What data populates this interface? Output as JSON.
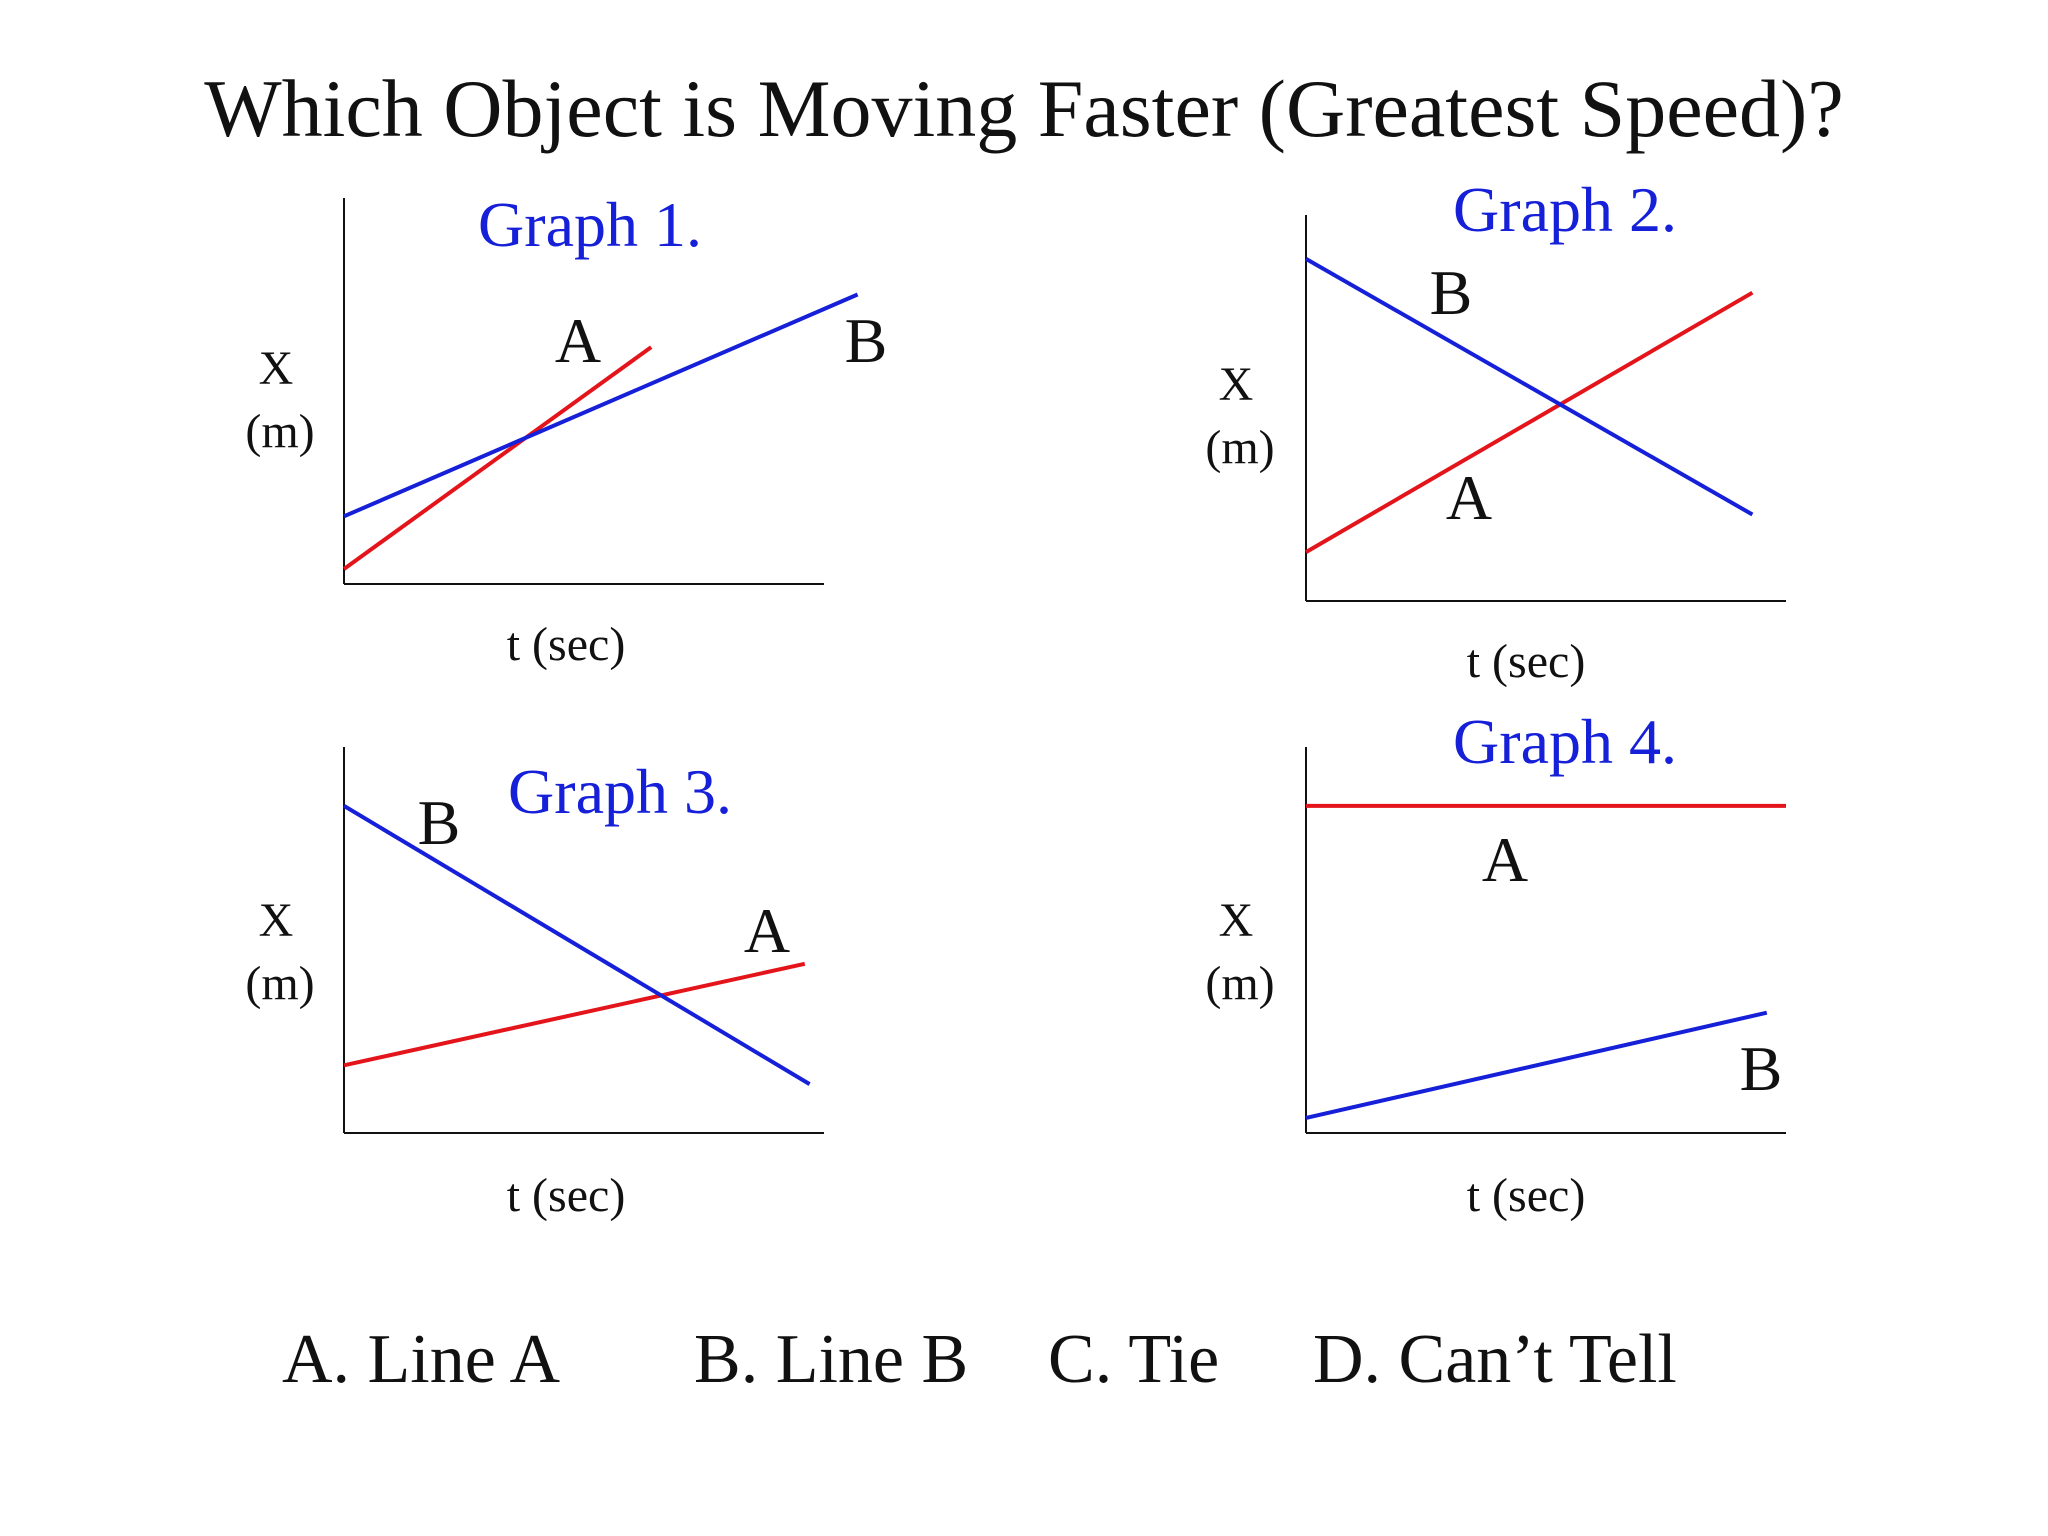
{
  "title": "Which Object is Moving Faster (Greatest Speed)?",
  "colors": {
    "line_a": "#e4141b",
    "line_b": "#1520d8",
    "graph_title": "#1520d8",
    "axes": "#111111"
  },
  "chart_data": [
    {
      "type": "line",
      "title": "Graph 1.",
      "xlabel": "t (sec)",
      "ylabel": [
        "X",
        "(m)"
      ],
      "xlim": [
        0,
        100
      ],
      "ylim": [
        0,
        100
      ],
      "series": [
        {
          "name": "A",
          "color": "#e4141b",
          "x": [
            0,
            64
          ],
          "y": [
            4,
            63
          ]
        },
        {
          "name": "B",
          "color": "#1520d8",
          "x": [
            0,
            107
          ],
          "y": [
            18,
            77
          ]
        }
      ]
    },
    {
      "type": "line",
      "title": "Graph 2.",
      "xlabel": "t (sec)",
      "ylabel": [
        "X",
        "(m)"
      ],
      "xlim": [
        0,
        100
      ],
      "ylim": [
        0,
        100
      ],
      "series": [
        {
          "name": "A",
          "color": "#e4141b",
          "x": [
            0,
            93
          ],
          "y": [
            13,
            82
          ]
        },
        {
          "name": "B",
          "color": "#1520d8",
          "x": [
            0,
            93
          ],
          "y": [
            91,
            23
          ]
        }
      ]
    },
    {
      "type": "line",
      "title": "Graph 3.",
      "xlabel": "t (sec)",
      "ylabel": [
        "X",
        "(m)"
      ],
      "xlim": [
        0,
        100
      ],
      "ylim": [
        0,
        100
      ],
      "series": [
        {
          "name": "A",
          "color": "#e4141b",
          "x": [
            0,
            96
          ],
          "y": [
            18,
            45
          ]
        },
        {
          "name": "B",
          "color": "#1520d8",
          "x": [
            0,
            97
          ],
          "y": [
            87,
            13
          ]
        }
      ]
    },
    {
      "type": "line",
      "title": "Graph 4.",
      "xlabel": "t (sec)",
      "ylabel": [
        "X",
        "(m)"
      ],
      "xlim": [
        0,
        100
      ],
      "ylim": [
        0,
        100
      ],
      "series": [
        {
          "name": "A",
          "color": "#e4141b",
          "x": [
            0,
            100
          ],
          "y": [
            87,
            87
          ]
        },
        {
          "name": "B",
          "color": "#1520d8",
          "x": [
            0,
            96
          ],
          "y": [
            4,
            32
          ]
        }
      ]
    }
  ],
  "answers": {
    "a": "A.  Line A",
    "b": "B. Line B",
    "c": "C. Tie",
    "d": "D. Can’t Tell"
  }
}
